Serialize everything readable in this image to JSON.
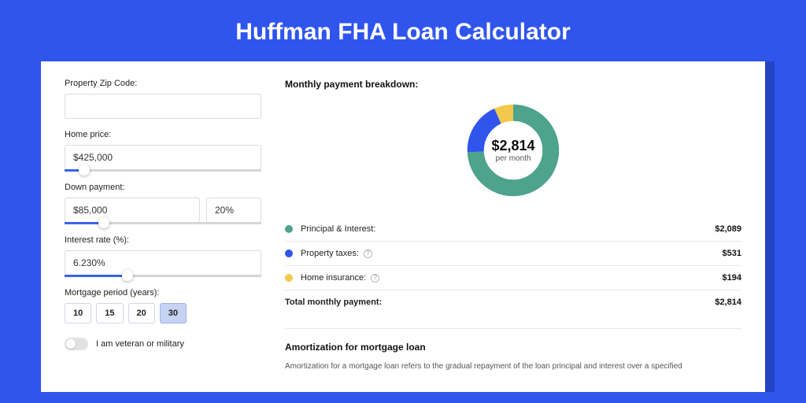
{
  "title": "Huffman FHA Loan Calculator",
  "colors": {
    "page_bg": "#2f55ed",
    "panel_shadow": "#2443c4",
    "principal": "#4da38b",
    "taxes": "#2f55ed",
    "insurance": "#f2c94c"
  },
  "form": {
    "zip": {
      "label": "Property Zip Code:",
      "value": ""
    },
    "price": {
      "label": "Home price:",
      "value": "$425,000",
      "slider_pct": 10
    },
    "down": {
      "label": "Down payment:",
      "amount": "$85,000",
      "percent": "20%",
      "slider_pct": 20
    },
    "rate": {
      "label": "Interest rate (%):",
      "value": "6.230%",
      "slider_pct": 32
    },
    "period": {
      "label": "Mortgage period (years):",
      "options": [
        "10",
        "15",
        "20",
        "30"
      ],
      "active": "30"
    },
    "veteran": {
      "label": "I am veteran or military",
      "value": false
    }
  },
  "breakdown": {
    "heading": "Monthly payment breakdown:",
    "donut": {
      "amount": "$2,814",
      "sub": "per month",
      "slices": [
        {
          "color": "#4da38b",
          "pct": 74.2
        },
        {
          "color": "#2f55ed",
          "pct": 18.9
        },
        {
          "color": "#f2c94c",
          "pct": 6.9
        }
      ]
    },
    "rows": [
      {
        "swatch": "#4da38b",
        "label": "Principal & Interest:",
        "value": "$2,089",
        "info": false
      },
      {
        "swatch": "#2f55ed",
        "label": "Property taxes:",
        "value": "$531",
        "info": true
      },
      {
        "swatch": "#f2c94c",
        "label": "Home insurance:",
        "value": "$194",
        "info": true
      }
    ],
    "total": {
      "label": "Total monthly payment:",
      "value": "$2,814"
    }
  },
  "amort": {
    "heading": "Amortization for mortgage loan",
    "text": "Amortization for a mortgage loan refers to the gradual repayment of the loan principal and interest over a specified"
  }
}
